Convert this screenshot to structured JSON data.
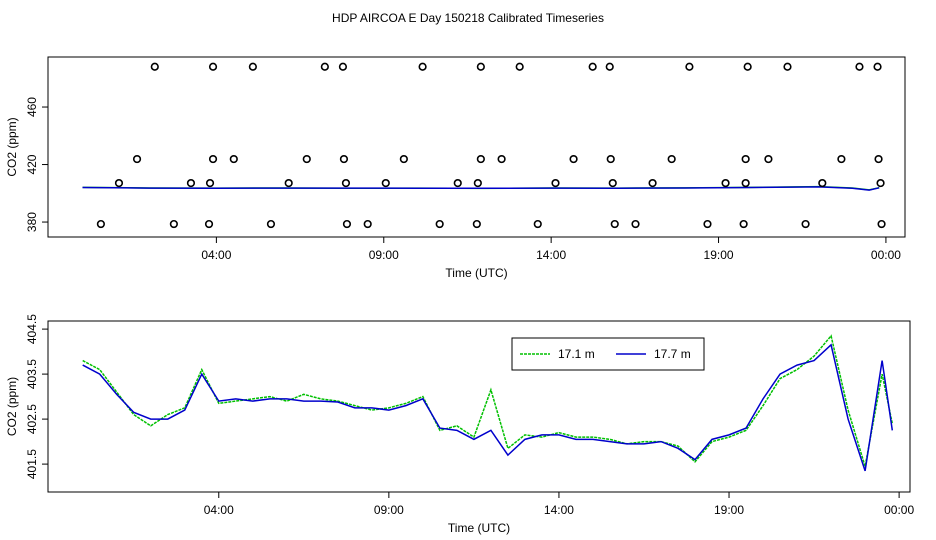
{
  "chart_data": [
    {
      "type": "line",
      "title": "HDP AIRCOA E  Day 150218  Calibrated Timeseries",
      "xlabel": "Time (UTC)",
      "ylabel": "CO2 (ppm)",
      "legend": false,
      "xlim": [
        -1.03,
        24.57
      ],
      "ylim": [
        369.6,
        494.8
      ],
      "xticks": [
        {
          "value": 4,
          "label": "04:00"
        },
        {
          "value": 9,
          "label": "09:00"
        },
        {
          "value": 14,
          "label": "14:00"
        },
        {
          "value": 19,
          "label": "19:00"
        },
        {
          "value": 24,
          "label": "00:00"
        }
      ],
      "yticks": [
        380,
        420,
        460
      ],
      "series": [
        {
          "color": "#00c000",
          "x": [
            0,
            2,
            4,
            6,
            8,
            10,
            12,
            14,
            16,
            18,
            20,
            22,
            23,
            23.5,
            23.8
          ],
          "values": [
            404.1,
            403.7,
            403.6,
            403.7,
            403.5,
            403.6,
            403.4,
            403.7,
            403.6,
            403.8,
            404.1,
            404.6,
            403.7,
            402.4,
            403.9
          ]
        },
        {
          "color": "#0000cc",
          "x": [
            0,
            2,
            4,
            6,
            8,
            10,
            12,
            14,
            16,
            18,
            20,
            22,
            23,
            23.5,
            23.8
          ],
          "values": [
            404,
            403.6,
            403.5,
            403.6,
            403.6,
            403.5,
            403.5,
            403.6,
            403.5,
            403.7,
            404,
            404.5,
            403.5,
            402.2,
            403.8
          ]
        },
        {
          "type": "scatter",
          "color": "#000000",
          "x": [
            2.16,
            3.9,
            5.09,
            7.24,
            7.78,
            10.16,
            11.9,
            13.06,
            15.24,
            15.75,
            18.13,
            19.87,
            21.06,
            23.21,
            23.75,
            1.63,
            3.9,
            4.52,
            6.7,
            7.81,
            9.6,
            11.9,
            12.52,
            14.67,
            15.78,
            17.6,
            19.81,
            20.49,
            22.67,
            23.78,
            1.09,
            3.24,
            3.81,
            6.16,
            7.87,
            9.06,
            11.21,
            11.81,
            14.13,
            15.84,
            17.03,
            19.21,
            19.81,
            22.1,
            23.84,
            0.55,
            2.73,
            3.78,
            5.63,
            7.9,
            8.52,
            10.67,
            11.78,
            13.6,
            15.9,
            16.52,
            18.67,
            19.75,
            21.6,
            23.87
          ],
          "values": [
            488,
            488,
            488,
            488,
            488,
            488,
            488,
            488,
            488,
            488,
            488,
            488,
            488,
            488,
            488,
            423.8,
            423.8,
            423.8,
            423.8,
            423.8,
            423.8,
            423.8,
            423.8,
            423.8,
            423.8,
            423.8,
            423.8,
            423.8,
            423.8,
            423.8,
            407.1,
            407.1,
            407.1,
            407.1,
            407.1,
            407.1,
            407.1,
            407.1,
            407.1,
            407.1,
            407.1,
            407.1,
            407.1,
            407.1,
            407.1,
            378.6,
            378.6,
            378.6,
            378.6,
            378.6,
            378.6,
            378.6,
            378.6,
            378.6,
            378.6,
            378.6,
            378.6,
            378.6,
            378.6,
            378.6
          ]
        }
      ]
    },
    {
      "type": "line",
      "xlabel": "Time (UTC)",
      "ylabel": "CO2 (ppm)",
      "legend": true,
      "xlim": [
        -1.02,
        24.32
      ],
      "ylim": [
        400.88,
        404.68
      ],
      "xticks": [
        {
          "value": 4,
          "label": "04:00"
        },
        {
          "value": 9,
          "label": "09:00"
        },
        {
          "value": 14,
          "label": "14:00"
        },
        {
          "value": 19,
          "label": "19:00"
        },
        {
          "value": 24,
          "label": "00:00"
        }
      ],
      "yticks": [
        401.5,
        402.5,
        403.5,
        404.5
      ],
      "series": [
        {
          "name": "17.1 m",
          "color": "#00c000",
          "x": [
            0,
            0.5,
            1,
            1.5,
            2,
            2.5,
            3,
            3.5,
            4,
            4.5,
            5,
            5.5,
            6,
            6.5,
            7,
            7.5,
            8,
            8.5,
            9,
            9.5,
            10,
            10.5,
            11,
            11.5,
            12,
            12.5,
            13,
            13.5,
            14,
            14.5,
            15,
            15.5,
            16,
            16.5,
            17,
            17.5,
            18,
            18.5,
            19,
            19.5,
            20,
            20.5,
            21,
            21.5,
            22,
            22.5,
            23,
            23.5,
            23.8
          ],
          "values": [
            403.8,
            403.6,
            403.1,
            402.6,
            402.35,
            402.6,
            402.75,
            403.6,
            402.85,
            402.9,
            402.95,
            403.0,
            402.9,
            403.05,
            402.95,
            402.9,
            402.8,
            402.7,
            402.75,
            402.85,
            403.0,
            402.25,
            402.35,
            402.1,
            403.15,
            401.85,
            402.15,
            402.1,
            402.2,
            402.1,
            402.1,
            402.05,
            401.95,
            402.0,
            402.0,
            401.9,
            401.55,
            402.0,
            402.1,
            402.25,
            402.8,
            403.4,
            403.6,
            403.9,
            404.35,
            402.7,
            401.45,
            403.5,
            402.4
          ]
        },
        {
          "name": "17.7 m",
          "color": "#0000cc",
          "x": [
            0,
            0.5,
            1,
            1.5,
            2,
            2.5,
            3,
            3.5,
            4,
            4.5,
            5,
            5.5,
            6,
            6.5,
            7,
            7.5,
            8,
            8.5,
            9,
            9.5,
            10,
            10.5,
            11,
            11.5,
            12,
            12.5,
            13,
            13.5,
            14,
            14.5,
            15,
            15.5,
            16,
            16.5,
            17,
            17.5,
            18,
            18.5,
            19,
            19.5,
            20,
            20.5,
            21,
            21.5,
            22,
            22.5,
            23,
            23.5,
            23.8
          ],
          "values": [
            403.7,
            403.5,
            403.05,
            402.65,
            402.5,
            402.5,
            402.7,
            403.5,
            402.9,
            402.95,
            402.9,
            402.95,
            402.95,
            402.9,
            402.9,
            402.88,
            402.75,
            402.75,
            402.7,
            402.8,
            402.95,
            402.3,
            402.25,
            402.05,
            402.25,
            401.7,
            402.05,
            402.15,
            402.15,
            402.05,
            402.05,
            402.0,
            401.95,
            401.95,
            402.0,
            401.85,
            401.6,
            402.05,
            402.15,
            402.3,
            402.95,
            403.5,
            403.7,
            403.8,
            404.15,
            402.5,
            401.35,
            403.8,
            402.25
          ]
        }
      ]
    }
  ]
}
